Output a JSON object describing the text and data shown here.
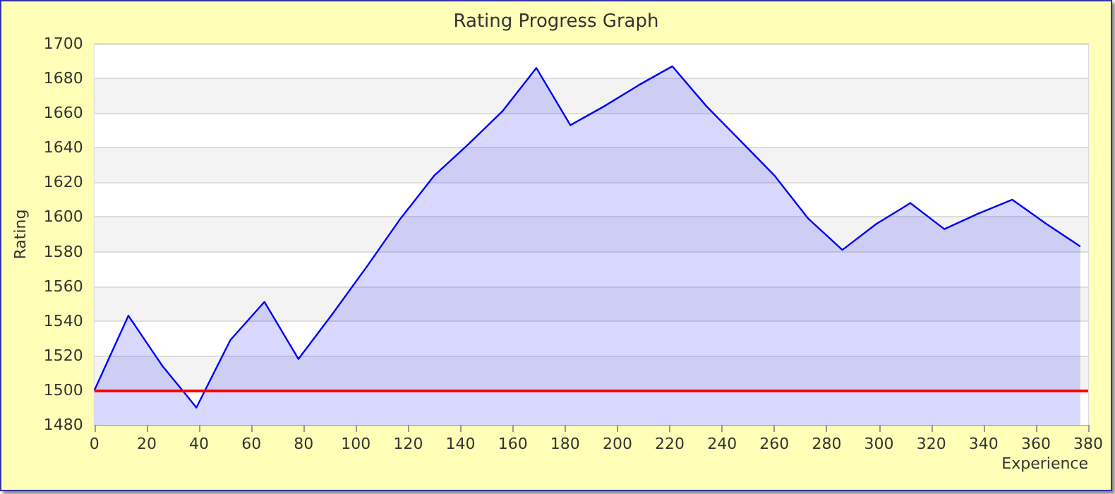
{
  "chart_data": {
    "type": "area",
    "title": "Rating Progress Graph",
    "xlabel": "Experience",
    "ylabel": "Rating",
    "x": [
      0,
      13,
      26,
      39,
      52,
      65,
      78,
      91,
      104,
      117,
      130,
      143,
      156,
      169,
      182,
      195,
      208,
      221,
      234,
      247,
      260,
      273,
      286,
      299,
      312,
      325,
      338,
      351,
      364,
      377
    ],
    "series": [
      {
        "color": "#0000ff",
        "values": [
          1500,
          1543,
          1514,
          1490,
          1529,
          1551,
          1518,
          1544,
          1571,
          1599,
          1624,
          1642,
          1661,
          1686,
          1653,
          1664,
          1676,
          1687,
          1664,
          1644,
          1624,
          1599,
          1581,
          1596,
          1608,
          1593,
          1602,
          1610,
          1596,
          1583
        ]
      }
    ],
    "xlim": [
      0,
      380
    ],
    "xticks": [
      0,
      20,
      40,
      60,
      80,
      100,
      120,
      140,
      160,
      180,
      200,
      220,
      240,
      260,
      280,
      300,
      320,
      340,
      360,
      380
    ],
    "ylim": [
      1480,
      1700
    ],
    "yticks": [
      1480,
      1500,
      1520,
      1540,
      1560,
      1580,
      1600,
      1620,
      1640,
      1660,
      1680,
      1700
    ],
    "grid": "y",
    "marker": "none",
    "line_style": "solid",
    "ref_lines": [
      {
        "axis": "y",
        "value": 1500,
        "color": "#ff0000"
      }
    ]
  }
}
